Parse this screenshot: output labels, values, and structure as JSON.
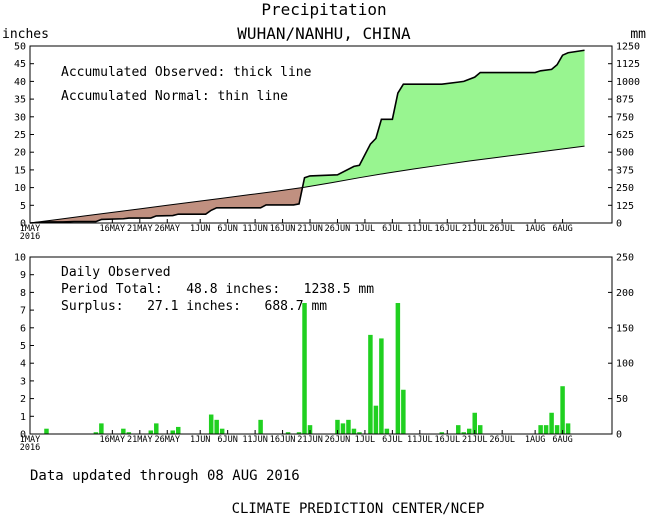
{
  "title": "Precipitation",
  "subtitle": "WUHAN/NANHU, CHINA",
  "left_unit": "inches",
  "right_unit": "mm",
  "footer_updated": "Data updated through 08 AUG 2016",
  "footer_credit": "CLIMATE PREDICTION CENTER/NCEP",
  "x_tick_labels": [
    "1MAY",
    "16MAY",
    "21MAY",
    "26MAY",
    "1JUN",
    "6JUN",
    "11JUN",
    "16JUN",
    "21JUN",
    "26JUN",
    "1JUL",
    "6JUL",
    "11JUL",
    "16JUL",
    "21JUL",
    "26JUL",
    "1AUG",
    "6AUG"
  ],
  "x_tick_days": [
    0,
    15,
    20,
    25,
    31,
    36,
    41,
    46,
    51,
    56,
    61,
    66,
    71,
    76,
    81,
    86,
    92,
    97
  ],
  "x_year_label": "2016",
  "colors": {
    "surplus_fill": "#98f590",
    "deficit_fill": "#c09080",
    "daily_bar": "#20d020",
    "line": "#000000"
  },
  "chart_data": [
    {
      "type": "area",
      "legend_observed": "Accumulated Observed: thick line",
      "legend_normal": "Accumulated Normal: thin line",
      "x_unit": "days since 1 MAY 2016",
      "x_range": [
        0,
        106
      ],
      "ylim_inches": [
        0,
        50
      ],
      "y_ticks_inches": [
        0,
        5,
        10,
        15,
        20,
        25,
        30,
        35,
        40,
        45,
        50
      ],
      "ylim_mm": [
        0,
        1250
      ],
      "y_ticks_mm": [
        0,
        125,
        250,
        375,
        500,
        625,
        750,
        875,
        1000,
        1125,
        1250
      ],
      "series": [
        {
          "name": "Accumulated Observed",
          "x": [
            0,
            3,
            6,
            8,
            12,
            13,
            17,
            18,
            22,
            23,
            26,
            27,
            32,
            33,
            34,
            42,
            43,
            48,
            49,
            50,
            51,
            56,
            59,
            60,
            62,
            63,
            64,
            66,
            67,
            68,
            75,
            78,
            79,
            81,
            82,
            90,
            92,
            93,
            95,
            96,
            97,
            98,
            101
          ],
          "y": [
            0.0,
            0.3,
            0.3,
            0.4,
            0.4,
            1.0,
            1.2,
            1.4,
            1.4,
            2.0,
            2.1,
            2.5,
            2.5,
            3.6,
            4.3,
            4.3,
            5.1,
            5.1,
            5.4,
            12.8,
            13.3,
            13.6,
            16.0,
            16.3,
            22.3,
            23.9,
            29.3,
            29.3,
            36.7,
            39.2,
            39.2,
            39.8,
            40.0,
            41.2,
            42.5,
            42.5,
            42.5,
            43.0,
            43.4,
            44.7,
            47.4,
            48.1,
            48.8
          ]
        },
        {
          "name": "Accumulated Normal",
          "x": [
            0,
            5,
            10,
            15,
            20,
            25,
            30,
            35,
            40,
            45,
            50,
            55,
            60,
            65,
            70,
            75,
            80,
            85,
            90,
            95,
            101
          ],
          "y": [
            0.0,
            1.0,
            2.0,
            3.0,
            4.0,
            5.0,
            6.0,
            7.0,
            8.0,
            9.0,
            10.1,
            11.4,
            12.8,
            14.1,
            15.3,
            16.4,
            17.5,
            18.5,
            19.5,
            20.5,
            21.7
          ]
        }
      ]
    },
    {
      "type": "bar",
      "title": "Daily Observed",
      "period_total": "Period Total:   48.8 inches:   1238.5 mm",
      "surplus": "Surplus:   27.1 inches:   688.7 mm",
      "x_unit": "days since 1 MAY 2016",
      "x_range": [
        0,
        106
      ],
      "ylim_inches": [
        0,
        10
      ],
      "y_ticks_inches": [
        0,
        1,
        2,
        3,
        4,
        5,
        6,
        7,
        8,
        9,
        10
      ],
      "ylim_mm": [
        0,
        250
      ],
      "y_ticks_mm": [
        0,
        50,
        100,
        150,
        200,
        250
      ],
      "days": [
        3,
        12,
        13,
        17,
        18,
        22,
        23,
        26,
        27,
        33,
        34,
        35,
        42,
        47,
        49,
        50,
        51,
        56,
        57,
        58,
        59,
        60,
        62,
        63,
        64,
        65,
        67,
        68,
        75,
        78,
        79,
        80,
        81,
        82,
        93,
        94,
        95,
        96,
        97,
        98
      ],
      "values": [
        0.3,
        0.1,
        0.6,
        0.3,
        0.1,
        0.2,
        0.6,
        0.2,
        0.4,
        1.1,
        0.8,
        0.3,
        0.8,
        0.1,
        0.1,
        7.4,
        0.5,
        0.8,
        0.6,
        0.8,
        0.3,
        0.1,
        5.6,
        1.6,
        5.4,
        0.3,
        7.4,
        2.5,
        0.1,
        0.5,
        0.1,
        0.3,
        1.2,
        0.5,
        0.5,
        0.5,
        1.2,
        0.5,
        2.7,
        0.6
      ]
    }
  ]
}
